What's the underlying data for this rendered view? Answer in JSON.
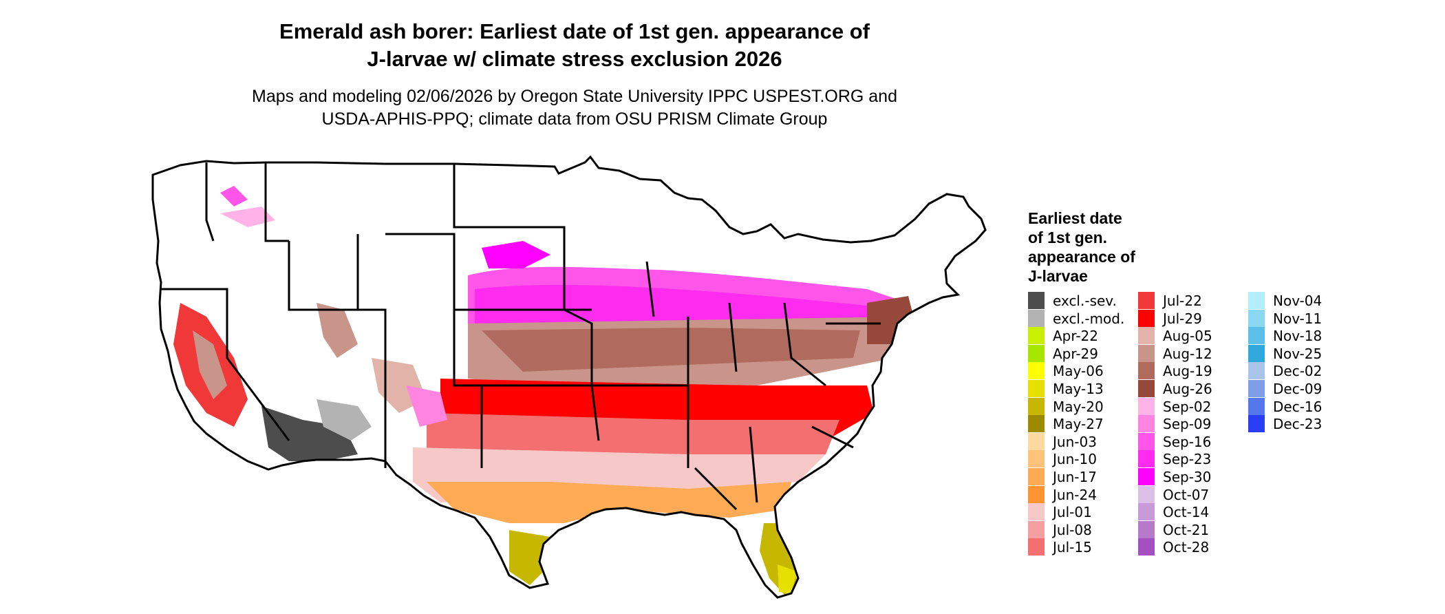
{
  "title": {
    "line1": "Emerald ash borer: Earliest date of 1st gen. appearance of",
    "line2": "J-larvae w/ climate stress exclusion 2026"
  },
  "subtitle": {
    "line1": "Maps and modeling 02/06/2026 by Oregon State University IPPC USPEST.ORG and",
    "line2": "USDA-APHIS-PPQ; climate data from OSU PRISM Climate Group"
  },
  "legend": {
    "title_lines": [
      "Earliest date",
      "of 1st gen.",
      "appearance of",
      "J-larvae"
    ],
    "columns": [
      [
        {
          "label": "excl.-sev.",
          "color": "#4d4d4d"
        },
        {
          "label": "excl.-mod.",
          "color": "#b3b3b3"
        },
        {
          "label": "Apr-22",
          "color": "#c8f000"
        },
        {
          "label": "Apr-29",
          "color": "#a8e600"
        },
        {
          "label": "May-06",
          "color": "#ffff00"
        },
        {
          "label": "May-13",
          "color": "#e6e000"
        },
        {
          "label": "May-20",
          "color": "#c6b800"
        },
        {
          "label": "May-27",
          "color": "#9c8a00"
        },
        {
          "label": "Jun-03",
          "color": "#ffd9a0"
        },
        {
          "label": "Jun-10",
          "color": "#ffc27a"
        },
        {
          "label": "Jun-17",
          "color": "#ffab55"
        },
        {
          "label": "Jun-24",
          "color": "#ff9433"
        },
        {
          "label": "Jul-01",
          "color": "#f6c8c8"
        },
        {
          "label": "Jul-08",
          "color": "#f4a0a0"
        },
        {
          "label": "Jul-15",
          "color": "#f46f6f"
        }
      ],
      [
        {
          "label": "Jul-22",
          "color": "#f03838"
        },
        {
          "label": "Jul-29",
          "color": "#ff0000"
        },
        {
          "label": "Aug-05",
          "color": "#e2b3a8"
        },
        {
          "label": "Aug-12",
          "color": "#c9958a"
        },
        {
          "label": "Aug-19",
          "color": "#b06b5e"
        },
        {
          "label": "Aug-26",
          "color": "#96483b"
        },
        {
          "label": "Sep-02",
          "color": "#ffb3e6"
        },
        {
          "label": "Sep-09",
          "color": "#ff85e0"
        },
        {
          "label": "Sep-16",
          "color": "#ff55e8"
        },
        {
          "label": "Sep-23",
          "color": "#ff2bef"
        },
        {
          "label": "Sep-30",
          "color": "#ff00ff"
        },
        {
          "label": "Oct-07",
          "color": "#dcbfe6"
        },
        {
          "label": "Oct-14",
          "color": "#c89ad8"
        },
        {
          "label": "Oct-21",
          "color": "#b779cc"
        },
        {
          "label": "Oct-28",
          "color": "#a450c0"
        }
      ],
      [
        {
          "label": "Nov-04",
          "color": "#b3eeff"
        },
        {
          "label": "Nov-11",
          "color": "#8ad7f2"
        },
        {
          "label": "Nov-18",
          "color": "#5cc0e8"
        },
        {
          "label": "Nov-25",
          "color": "#2fa8dc"
        },
        {
          "label": "Dec-02",
          "color": "#a8c4e8"
        },
        {
          "label": "Dec-09",
          "color": "#7f9ee8"
        },
        {
          "label": "Dec-16",
          "color": "#5577ee"
        },
        {
          "label": "Dec-23",
          "color": "#2a3ff5"
        }
      ]
    ]
  },
  "map": {
    "region": "conterminous-united-states",
    "state_border_color": "#000000",
    "no_data_color": "#ffffff"
  }
}
